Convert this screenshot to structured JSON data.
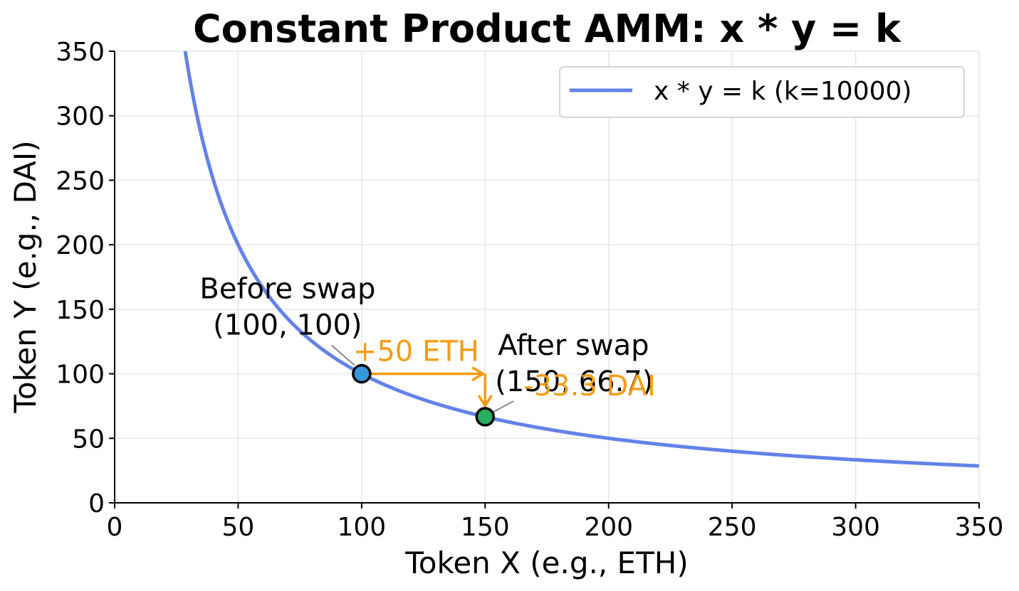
{
  "chart_data": {
    "type": "line",
    "title": "Constant Product AMM: x * y = k",
    "xlabel": "Token X (e.g., ETH)",
    "ylabel": "Token Y (e.g., DAI)",
    "xlim": [
      0,
      350
    ],
    "ylim": [
      0,
      350
    ],
    "xticks": [
      0,
      50,
      100,
      150,
      200,
      250,
      300,
      350
    ],
    "yticks": [
      0,
      50,
      100,
      150,
      200,
      250,
      300,
      350
    ],
    "grid": true,
    "legend_position": "top-right",
    "series": [
      {
        "name": "x * y = k (k=10000)",
        "k": 10000,
        "x_range": [
          10,
          350
        ],
        "color": "#6382e8"
      }
    ],
    "points": [
      {
        "x": 100,
        "y": 100,
        "color": "#3498db",
        "label_line1": "Before swap",
        "label_line2": "(100, 100)"
      },
      {
        "x": 150,
        "y": 66.7,
        "color": "#27ae60",
        "label_line1": "After swap",
        "label_line2": "(150, 66.7)"
      }
    ],
    "moves": {
      "color": "#f39c12",
      "x_move_label": "+50 ETH",
      "y_move_label": "-33.3 DAI"
    }
  }
}
